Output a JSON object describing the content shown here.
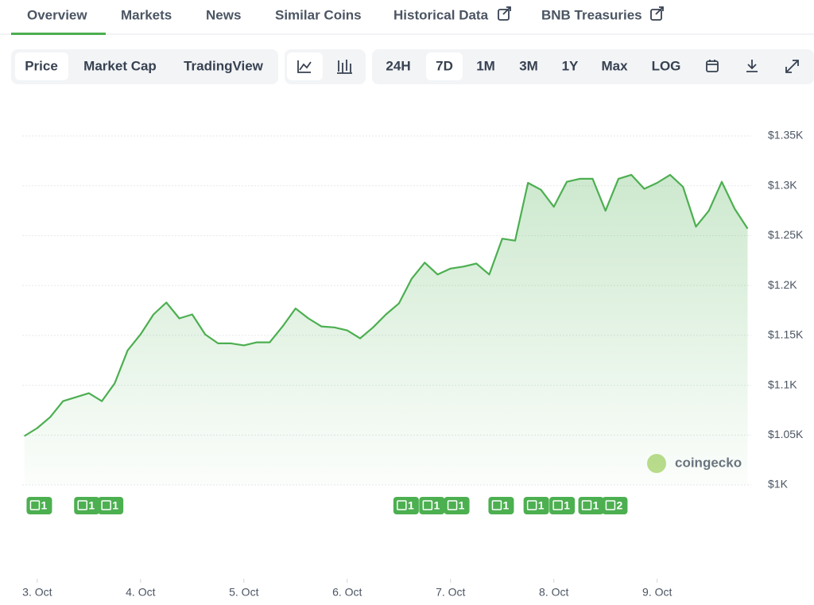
{
  "tabs": [
    "Overview",
    "Markets",
    "News",
    "Similar Coins",
    "Historical Data",
    "BNB Treasuries"
  ],
  "toolbar": {
    "views": [
      "Price",
      "Market Cap",
      "TradingView"
    ],
    "ranges": [
      "24H",
      "7D",
      "1M",
      "3M",
      "1Y",
      "Max",
      "LOG"
    ]
  },
  "chart_data": {
    "type": "line",
    "watermark": "coingecko",
    "x": [
      2.875,
      3,
      3.125,
      3.25,
      3.375,
      3.5,
      3.625,
      3.75,
      3.875,
      4,
      4.125,
      4.25,
      4.375,
      4.5,
      4.625,
      4.75,
      4.875,
      5,
      5.125,
      5.25,
      5.375,
      5.5,
      5.625,
      5.75,
      5.875,
      6,
      6.125,
      6.25,
      6.375,
      6.5,
      6.625,
      6.75,
      6.875,
      7,
      7.125,
      7.25,
      7.375,
      7.5,
      7.625,
      7.75,
      7.875,
      8,
      8.125,
      8.25,
      8.375,
      8.5,
      8.625,
      8.75,
      8.875,
      9,
      9.125,
      9.25,
      9.375,
      9.5,
      9.625,
      9.75,
      9.875
    ],
    "series": [
      {
        "color": "#4caf50",
        "values": [
          1049,
          1057,
          1068,
          1084,
          1088,
          1092,
          1084,
          1102,
          1135,
          1151,
          1171,
          1183,
          1167,
          1171,
          1151,
          1142,
          1142,
          1140,
          1143,
          1143,
          1159,
          1177,
          1167,
          1159,
          1158,
          1155,
          1147,
          1158,
          1171,
          1182,
          1207,
          1223,
          1211,
          1217,
          1219,
          1222,
          1211,
          1247,
          1245,
          1303,
          1296,
          1279,
          1304,
          1307,
          1307,
          1275,
          1307,
          1311,
          1297,
          1303,
          1311,
          1299,
          1259,
          1275,
          1304,
          1277,
          1257
        ]
      }
    ],
    "xlim": [
      2.855,
      9.91
    ],
    "xticks": [
      {
        "value": 3,
        "label": "3. Oct"
      },
      {
        "value": 4,
        "label": "4. Oct"
      },
      {
        "value": 5,
        "label": "5. Oct"
      },
      {
        "value": 6,
        "label": "6. Oct"
      },
      {
        "value": 7,
        "label": "7. Oct"
      },
      {
        "value": 8,
        "label": "8. Oct"
      },
      {
        "value": 9,
        "label": "9. Oct"
      }
    ],
    "ylim": [
      1000,
      1350
    ],
    "yticks": [
      {
        "value": 1000,
        "label": "$1K"
      },
      {
        "value": 1050,
        "label": "$1.05K"
      },
      {
        "value": 1100,
        "label": "$1.1K"
      },
      {
        "value": 1150,
        "label": "$1.15K"
      },
      {
        "value": 1200,
        "label": "$1.2K"
      },
      {
        "value": 1250,
        "label": "$1.25K"
      },
      {
        "value": 1300,
        "label": "$1.3K"
      },
      {
        "value": 1350,
        "label": "$1.35K"
      }
    ],
    "grid": true,
    "news_markers": [
      {
        "x": 3.02,
        "label": "1"
      },
      {
        "x": 3.48,
        "label": "1"
      },
      {
        "x": 3.71,
        "label": "1"
      },
      {
        "x": 6.57,
        "label": "1"
      },
      {
        "x": 6.82,
        "label": "1"
      },
      {
        "x": 7.06,
        "label": "1"
      },
      {
        "x": 7.49,
        "label": "1"
      },
      {
        "x": 7.83,
        "label": "1"
      },
      {
        "x": 8.08,
        "label": "1"
      },
      {
        "x": 8.36,
        "label": "1"
      },
      {
        "x": 8.59,
        "label": "2"
      }
    ]
  }
}
